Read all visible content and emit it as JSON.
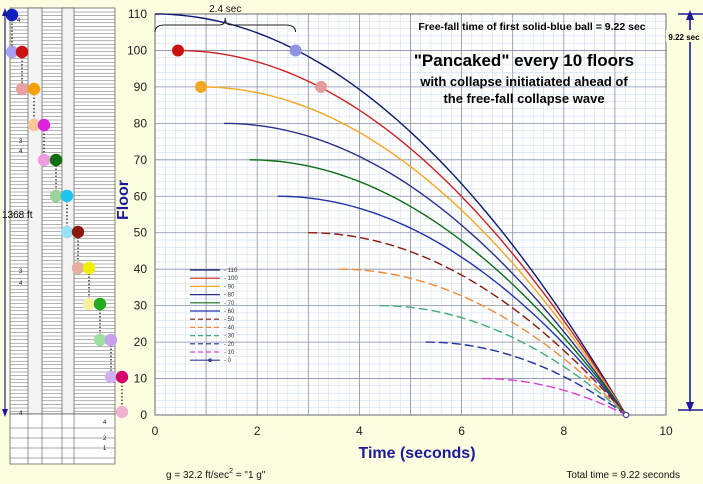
{
  "chart_data": {
    "type": "line",
    "title": "\"Pancaked\" every 10 floors",
    "subtitle_lines": [
      "with collapse initiatiated ahead of",
      "the free-fall collapse wave"
    ],
    "header_note": "Free-fall time of first solid-blue ball  =  9.22 sec",
    "xlabel": "Time  (seconds)",
    "ylabel": "Floor",
    "xlim": [
      0,
      10
    ],
    "ylim": [
      0,
      110
    ],
    "x_ticks": [
      0,
      2,
      4,
      6,
      8,
      10
    ],
    "y_ticks": [
      0,
      10,
      20,
      30,
      40,
      50,
      60,
      70,
      80,
      90,
      100,
      110
    ],
    "grid": true,
    "legend_position": "lower-left",
    "total_time": 9.22,
    "series": [
      {
        "name": "110",
        "start_floor": 110,
        "start_time": 0.0,
        "color": "#0d1a6b",
        "dashed": false
      },
      {
        "name": "100",
        "start_floor": 100,
        "start_time": 0.45,
        "color": "#cc2222",
        "dashed": false
      },
      {
        "name": "90",
        "start_floor": 90,
        "start_time": 0.9,
        "color": "#f5a623",
        "dashed": false
      },
      {
        "name": "80",
        "start_floor": 80,
        "start_time": 1.35,
        "color": "#2b2f8a",
        "dashed": false
      },
      {
        "name": "70",
        "start_floor": 70,
        "start_time": 1.85,
        "color": "#0d6e17",
        "dashed": false
      },
      {
        "name": "60",
        "start_floor": 60,
        "start_time": 2.4,
        "color": "#2233aa",
        "dashed": false
      },
      {
        "name": "50",
        "start_floor": 50,
        "start_time": 3.0,
        "color": "#8b1a0e",
        "dashed": true
      },
      {
        "name": "40",
        "start_floor": 40,
        "start_time": 3.6,
        "color": "#f28a35",
        "dashed": true
      },
      {
        "name": "30",
        "start_floor": 30,
        "start_time": 4.4,
        "color": "#44aa77",
        "dashed": true
      },
      {
        "name": "20",
        "start_floor": 20,
        "start_time": 5.3,
        "color": "#23319e",
        "dashed": true
      },
      {
        "name": "10",
        "start_floor": 10,
        "start_time": 6.4,
        "color": "#e03ed8",
        "dashed": true
      },
      {
        "name": "0",
        "start_floor": 0,
        "start_time": 9.22,
        "color": "#3a3a9a",
        "dashed": false
      }
    ],
    "balls": [
      {
        "label": "floor-100-ball",
        "x": 0.45,
        "y": 100,
        "color": "#cc1111"
      },
      {
        "label": "floor-90-ball",
        "x": 0.9,
        "y": 90,
        "color": "#f5a623"
      },
      {
        "label": "floor-100-faded-ball",
        "x": 2.75,
        "y": 100,
        "color": "#8f92e0"
      },
      {
        "label": "floor-90-faded-ball",
        "x": 3.25,
        "y": 90,
        "color": "#e49b9b"
      }
    ],
    "bracket_label": "2.4 sec",
    "bracket_range": [
      0.0,
      2.75
    ],
    "right_measure_label": "9.22 sec",
    "left_measure_label": "1368  ft",
    "footer_left": "g = 32.2 ft/sec",
    "footer_left_exp": "2",
    "footer_left_tail": "  = \"1 g\"",
    "footer_right": "Total time = 9.22 seconds"
  },
  "building": {
    "balls": [
      {
        "name": "ball-blue-top",
        "color": "#1020c0"
      },
      {
        "name": "ball-lavender-1",
        "color": "#a8a0f0"
      },
      {
        "name": "ball-red",
        "color": "#cc1111"
      },
      {
        "name": "ball-pink-1",
        "color": "#eaa0a0"
      },
      {
        "name": "ball-orange",
        "color": "#f5a000"
      },
      {
        "name": "ball-peach",
        "color": "#f7c79a"
      },
      {
        "name": "ball-magenta",
        "color": "#dd22dd"
      },
      {
        "name": "ball-pink-2",
        "color": "#f09ae0"
      },
      {
        "name": "ball-green",
        "color": "#0e6e10"
      },
      {
        "name": "ball-lightgreen-1",
        "color": "#9ad29a"
      },
      {
        "name": "ball-cyan",
        "color": "#1cc4f0"
      },
      {
        "name": "ball-lightcyan",
        "color": "#9ae0f5"
      },
      {
        "name": "ball-brown",
        "color": "#8b1a0e"
      },
      {
        "name": "ball-tan",
        "color": "#e6b0a0"
      },
      {
        "name": "ball-yellow",
        "color": "#f0f000"
      },
      {
        "name": "ball-paleyellow",
        "color": "#f7f0a0"
      },
      {
        "name": "ball-green-2",
        "color": "#22aa22"
      },
      {
        "name": "ball-lightgreen-2",
        "color": "#a0e0a0"
      },
      {
        "name": "ball-lavender-2",
        "color": "#c8a0f0"
      },
      {
        "name": "ball-lilac",
        "color": "#d0b0f0"
      },
      {
        "name": "ball-crimson",
        "color": "#d4006a"
      },
      {
        "name": "ball-pink-3",
        "color": "#f0b0d0"
      }
    ],
    "floor_labels": [
      "4",
      "3",
      "4",
      "3",
      "4",
      "4",
      "2",
      "1",
      "4"
    ]
  },
  "colors": {
    "background": "#fefee0",
    "plot_background": "#ffffff",
    "grid_major": "#8890aa",
    "grid_minor": "#c8d8ee",
    "axis_text": "#1a1a9a",
    "measure": "#1a1a9a"
  }
}
